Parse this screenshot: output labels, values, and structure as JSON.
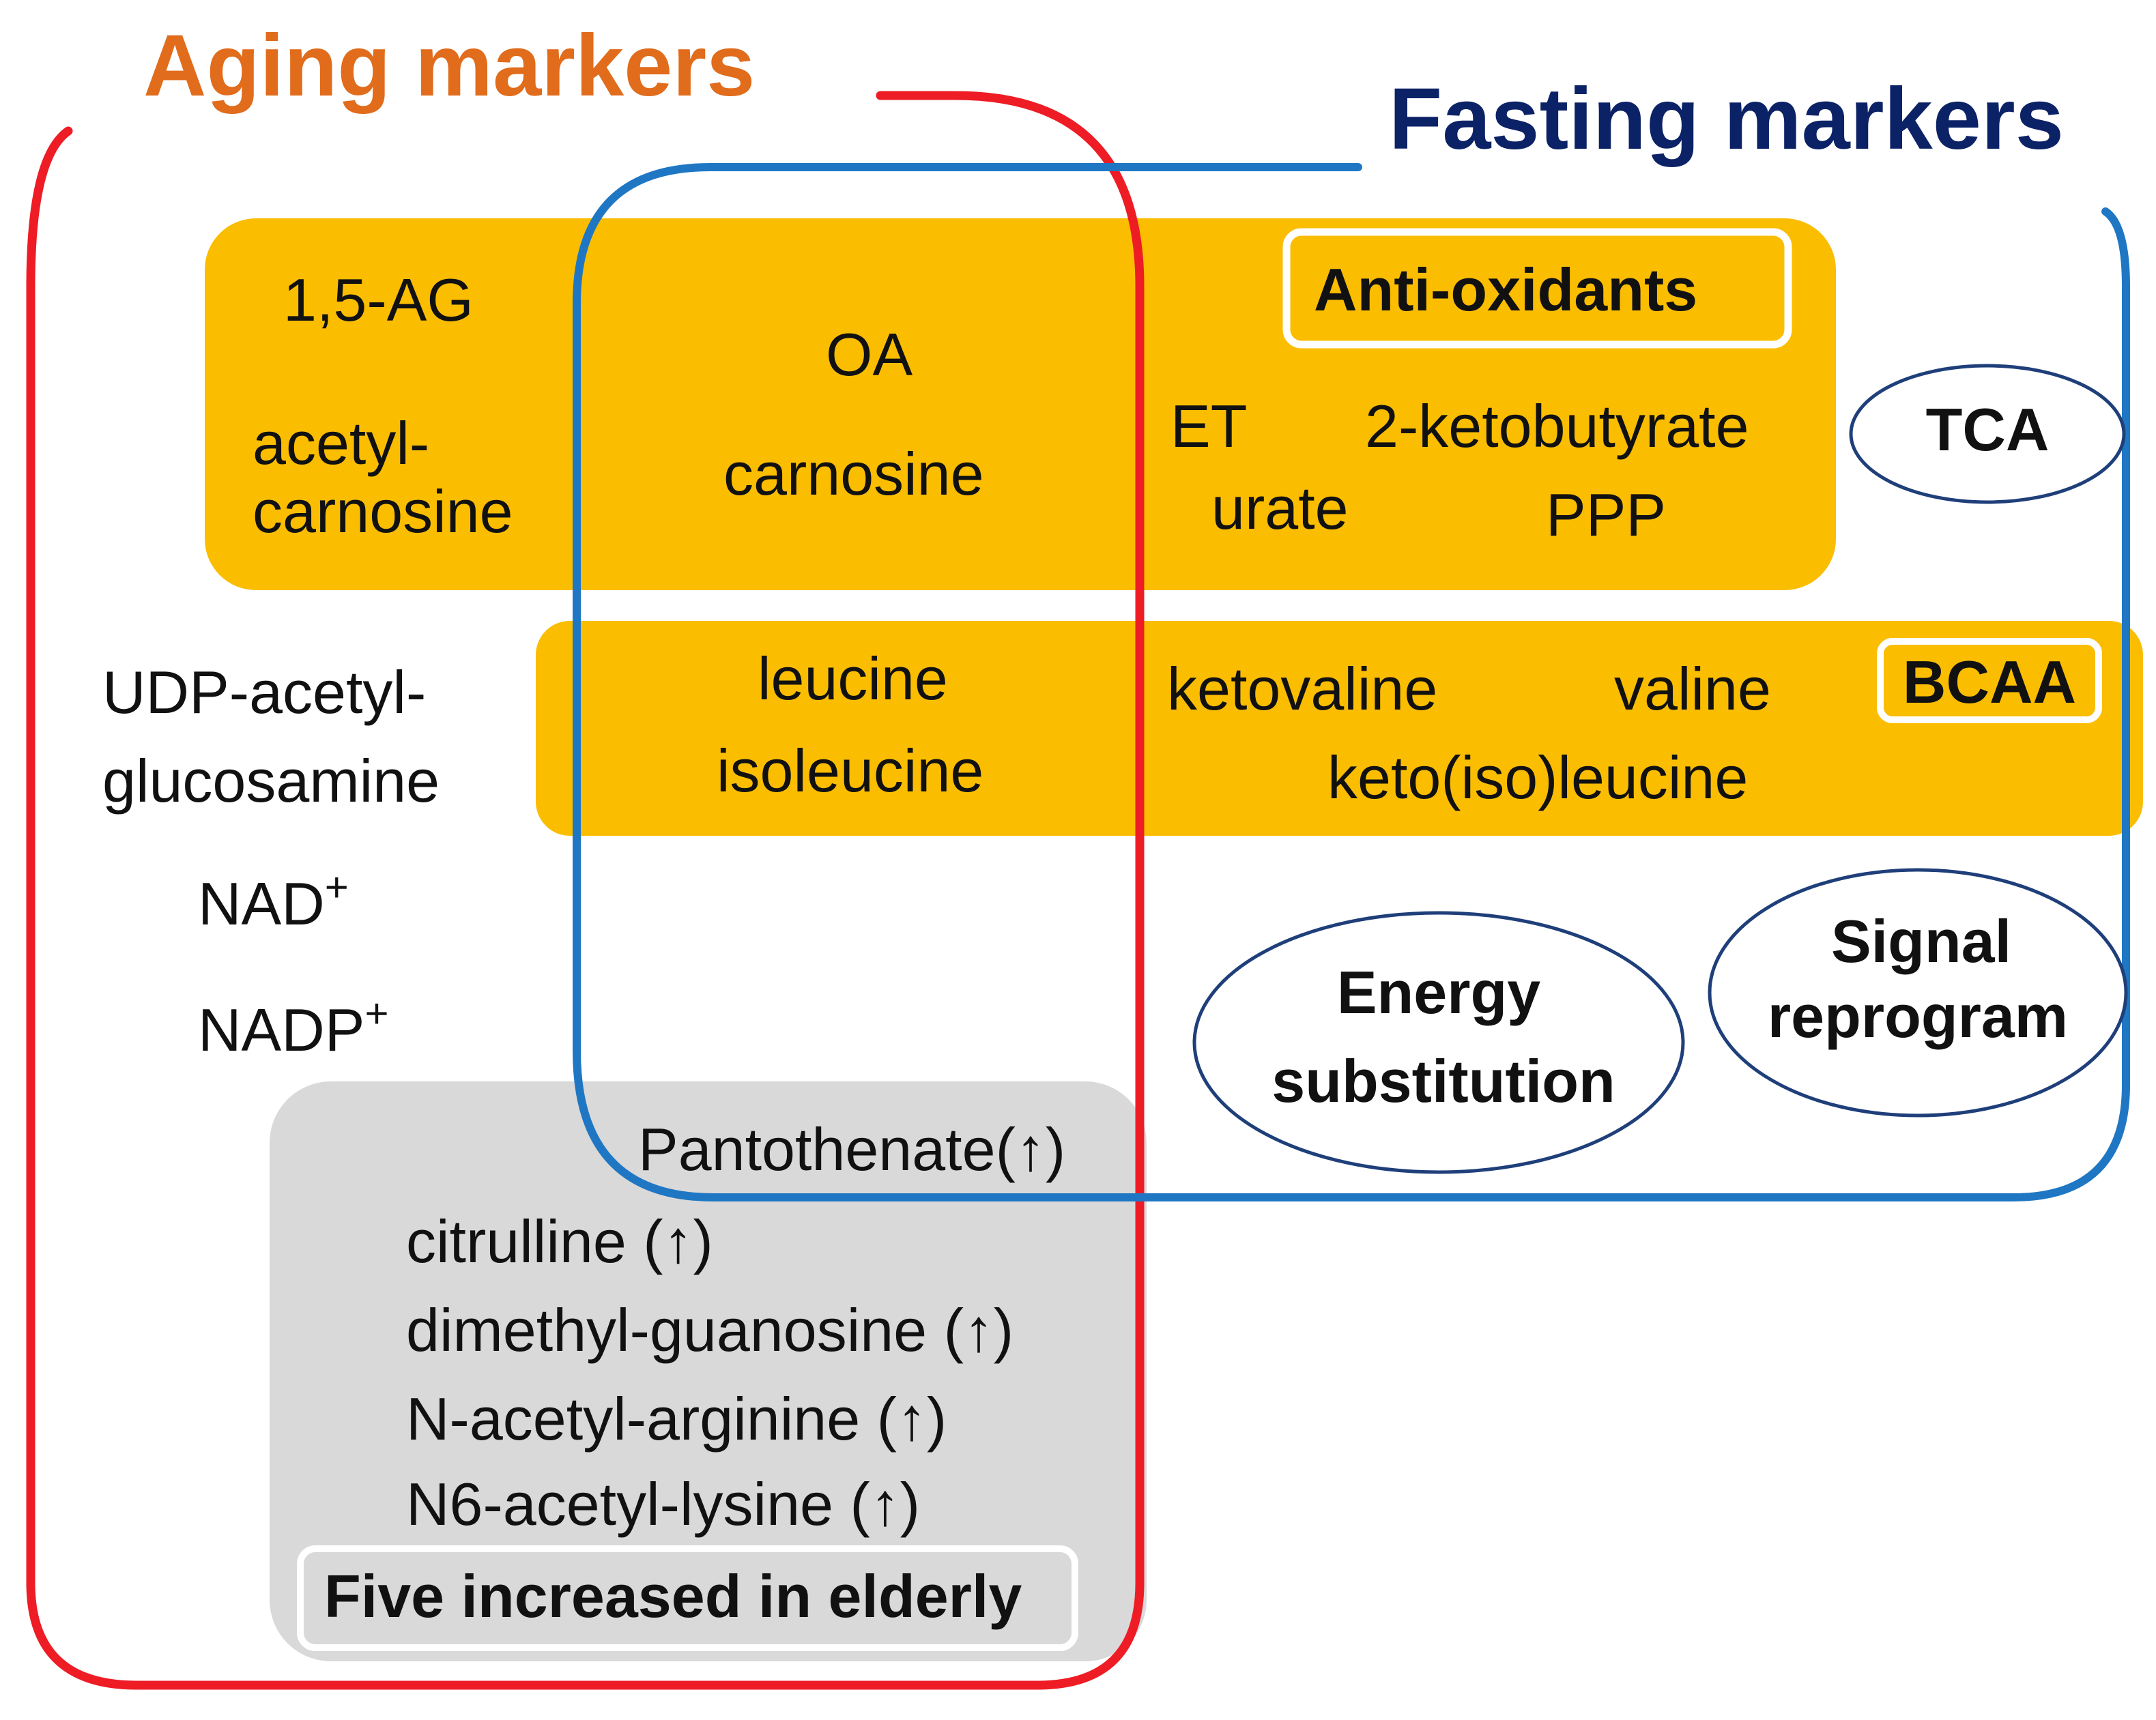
{
  "colors": {
    "aging": "#ee1c25",
    "aging_title": "#e06c1c",
    "fasting": "#1f77c4",
    "fasting_title": "#0c2266",
    "band": "#fbbd00",
    "grey_box": "#d9d9d9",
    "oval_stroke": "#1f3f7a",
    "text": "#111111"
  },
  "titles": {
    "aging": "Aging markers",
    "fasting": "Fasting markers"
  },
  "top_band": {
    "aging_only": [
      "1,5-AG",
      "acetyl-",
      "carnosine"
    ],
    "shared": [
      "OA",
      "carnosine"
    ],
    "fasting_only": [
      "ET",
      "2-ketobutyrate",
      "urate",
      "PPP"
    ],
    "tag": "Anti-oxidants"
  },
  "bcaa_band": {
    "shared": [
      "leucine",
      "isoleucine"
    ],
    "fasting_only": [
      "ketovaline",
      "valine",
      "keto(iso)leucine"
    ],
    "tag": "BCAA"
  },
  "aging_only_list": {
    "udp": [
      "UDP-acetyl-",
      "glucosamine"
    ],
    "nad": "NAD",
    "nadp": "NADP",
    "plus": "+"
  },
  "grey_box": {
    "shared_item": "Pantothenate(↑)",
    "items": [
      "citrulline (↑)",
      "dimethyl-guanosine (↑)",
      "N-acetyl-arginine (↑)",
      "N6-acetyl-lysine (↑)"
    ],
    "caption": "Five increased in elderly"
  },
  "ovals": {
    "tca": "TCA",
    "energy": [
      "Energy",
      "substitution"
    ],
    "signal": [
      "Signal",
      "reprogram"
    ]
  }
}
